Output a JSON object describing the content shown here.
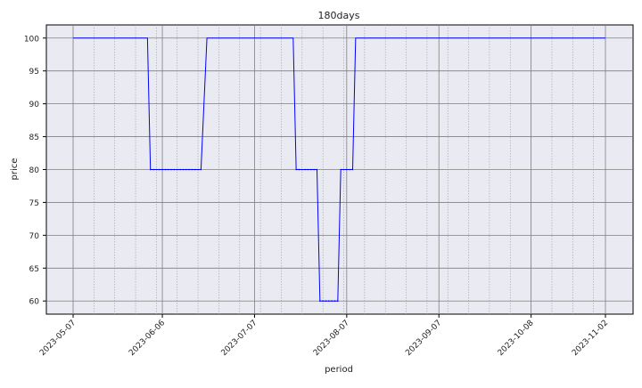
{
  "chart_data": {
    "type": "line",
    "title": "180days",
    "xlabel": "period",
    "ylabel": "price",
    "x_range": [
      "2023-05-07",
      "2023-11-02"
    ],
    "ylim": [
      58,
      102
    ],
    "grid": true,
    "x_ticks": [
      "2023-05-07",
      "2023-06-06",
      "2023-07-07",
      "2023-08-07",
      "2023-09-07",
      "2023-10-08",
      "2023-11-02"
    ],
    "y_ticks": [
      60,
      65,
      70,
      75,
      80,
      85,
      90,
      95,
      100
    ],
    "colors": {
      "line": "#0000ff",
      "plot_background": "#eaeaf2",
      "grid_major": "#808080",
      "grid_minor": "#a0a0a0"
    },
    "series": [
      {
        "x": [
          "2023-05-07",
          "2023-06-01",
          "2023-06-02",
          "2023-06-19",
          "2023-06-21",
          "2023-07-20",
          "2023-07-21",
          "2023-07-28",
          "2023-07-29",
          "2023-08-04",
          "2023-08-05",
          "2023-08-09",
          "2023-08-10",
          "2023-11-02"
        ],
        "y": [
          100,
          100,
          80,
          80,
          100,
          100,
          80,
          80,
          60,
          60,
          80,
          80,
          100,
          100
        ]
      }
    ]
  }
}
